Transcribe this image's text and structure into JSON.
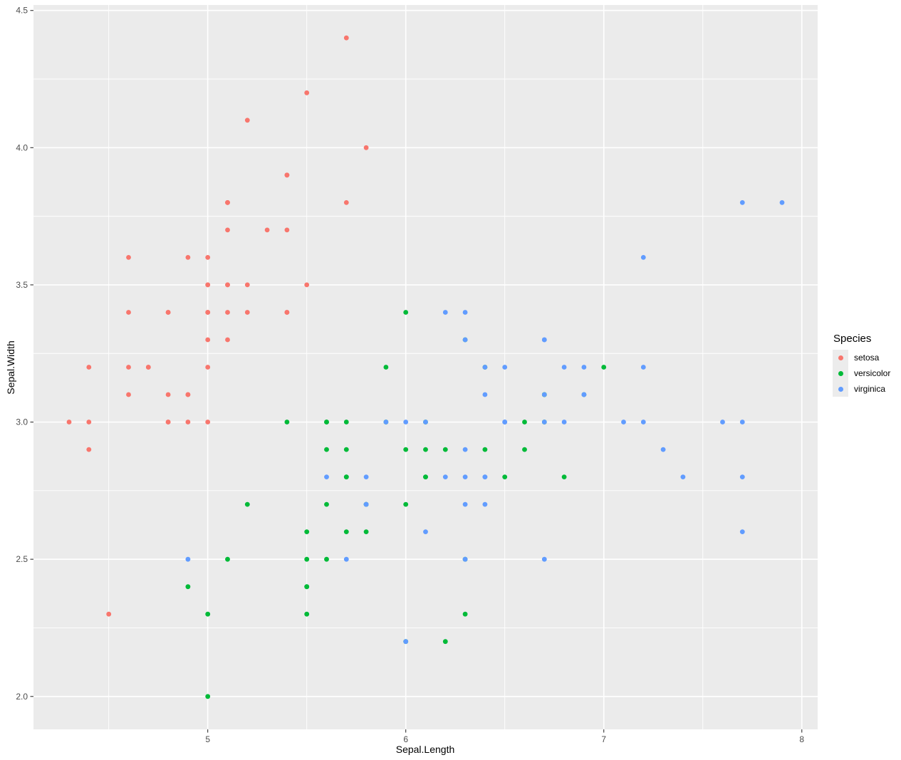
{
  "chart_data": {
    "type": "scatter",
    "title": "",
    "xlabel": "Sepal.Length",
    "ylabel": "Sepal.Width",
    "xlim": [
      4.12,
      8.08
    ],
    "ylim": [
      1.88,
      4.52
    ],
    "x_ticks": {
      "values": [
        5,
        6,
        7,
        8
      ],
      "labels": [
        "5",
        "6",
        "7",
        "8"
      ]
    },
    "y_ticks": {
      "values": [
        2.0,
        2.5,
        3.0,
        3.5,
        4.0,
        4.5
      ],
      "labels": [
        "2.0",
        "2.5",
        "3.0",
        "3.5",
        "4.0",
        "4.5"
      ]
    },
    "x_minor": [
      4.5,
      5.5,
      6.5,
      7.5
    ],
    "y_minor": [
      2.25,
      2.75,
      3.25,
      3.75,
      4.25
    ],
    "grid": "major+minor",
    "legend": {
      "title": "Species",
      "position": "right",
      "entries": [
        {
          "label": "setosa",
          "color": "#F8766D"
        },
        {
          "label": "versicolor",
          "color": "#00BA38"
        },
        {
          "label": "virginica",
          "color": "#619CFF"
        }
      ]
    },
    "theme": {
      "panel_bg": "#EBEBEB",
      "grid_color": "#FFFFFF",
      "tick_color": "#333333",
      "tick_label_color": "#4D4D4D",
      "axis_title_color": "#000000",
      "legend_key_bg": "#ECECEC",
      "point_radius": 3.4
    },
    "series": [
      {
        "name": "setosa",
        "color": "#F8766D",
        "points": [
          [
            5.1,
            3.5
          ],
          [
            4.9,
            3.0
          ],
          [
            4.7,
            3.2
          ],
          [
            4.6,
            3.1
          ],
          [
            5.0,
            3.6
          ],
          [
            5.4,
            3.9
          ],
          [
            4.6,
            3.4
          ],
          [
            5.0,
            3.4
          ],
          [
            4.4,
            2.9
          ],
          [
            4.9,
            3.1
          ],
          [
            5.4,
            3.7
          ],
          [
            4.8,
            3.4
          ],
          [
            4.8,
            3.0
          ],
          [
            4.3,
            3.0
          ],
          [
            5.8,
            4.0
          ],
          [
            5.7,
            4.4
          ],
          [
            5.4,
            3.9
          ],
          [
            5.1,
            3.5
          ],
          [
            5.7,
            3.8
          ],
          [
            5.1,
            3.8
          ],
          [
            5.4,
            3.4
          ],
          [
            5.1,
            3.7
          ],
          [
            4.6,
            3.6
          ],
          [
            5.1,
            3.3
          ],
          [
            4.8,
            3.4
          ],
          [
            5.0,
            3.0
          ],
          [
            5.0,
            3.4
          ],
          [
            5.2,
            3.5
          ],
          [
            5.2,
            3.4
          ],
          [
            4.7,
            3.2
          ],
          [
            4.8,
            3.1
          ],
          [
            5.4,
            3.4
          ],
          [
            5.2,
            4.1
          ],
          [
            5.5,
            4.2
          ],
          [
            4.9,
            3.1
          ],
          [
            5.0,
            3.2
          ],
          [
            5.5,
            3.5
          ],
          [
            4.9,
            3.6
          ],
          [
            4.4,
            3.0
          ],
          [
            5.1,
            3.4
          ],
          [
            5.0,
            3.5
          ],
          [
            4.5,
            2.3
          ],
          [
            4.4,
            3.2
          ],
          [
            5.0,
            3.5
          ],
          [
            5.1,
            3.8
          ],
          [
            4.8,
            3.0
          ],
          [
            5.1,
            3.8
          ],
          [
            4.6,
            3.2
          ],
          [
            5.3,
            3.7
          ],
          [
            5.0,
            3.3
          ]
        ]
      },
      {
        "name": "versicolor",
        "color": "#00BA38",
        "points": [
          [
            7.0,
            3.2
          ],
          [
            6.4,
            3.2
          ],
          [
            6.9,
            3.1
          ],
          [
            5.5,
            2.3
          ],
          [
            6.5,
            2.8
          ],
          [
            5.7,
            2.8
          ],
          [
            6.3,
            3.3
          ],
          [
            4.9,
            2.4
          ],
          [
            6.6,
            2.9
          ],
          [
            5.2,
            2.7
          ],
          [
            5.0,
            2.0
          ],
          [
            5.9,
            3.0
          ],
          [
            6.0,
            2.2
          ],
          [
            6.1,
            2.9
          ],
          [
            5.6,
            2.9
          ],
          [
            6.7,
            3.1
          ],
          [
            5.6,
            3.0
          ],
          [
            5.8,
            2.7
          ],
          [
            6.2,
            2.2
          ],
          [
            5.6,
            2.5
          ],
          [
            5.9,
            3.2
          ],
          [
            6.1,
            2.8
          ],
          [
            6.3,
            2.5
          ],
          [
            6.1,
            2.8
          ],
          [
            6.4,
            2.9
          ],
          [
            6.6,
            3.0
          ],
          [
            6.8,
            2.8
          ],
          [
            6.7,
            3.0
          ],
          [
            6.0,
            2.9
          ],
          [
            5.7,
            2.6
          ],
          [
            5.5,
            2.4
          ],
          [
            5.5,
            2.4
          ],
          [
            5.8,
            2.7
          ],
          [
            6.0,
            2.7
          ],
          [
            5.4,
            3.0
          ],
          [
            6.0,
            3.4
          ],
          [
            6.7,
            3.1
          ],
          [
            6.3,
            2.3
          ],
          [
            5.6,
            3.0
          ],
          [
            5.5,
            2.5
          ],
          [
            5.5,
            2.6
          ],
          [
            6.1,
            3.0
          ],
          [
            5.8,
            2.6
          ],
          [
            5.0,
            2.3
          ],
          [
            5.6,
            2.7
          ],
          [
            5.7,
            3.0
          ],
          [
            5.7,
            2.9
          ],
          [
            6.2,
            2.9
          ],
          [
            5.1,
            2.5
          ],
          [
            5.7,
            2.8
          ]
        ]
      },
      {
        "name": "virginica",
        "color": "#619CFF",
        "points": [
          [
            6.3,
            3.3
          ],
          [
            5.8,
            2.7
          ],
          [
            7.1,
            3.0
          ],
          [
            6.3,
            2.9
          ],
          [
            6.5,
            3.0
          ],
          [
            7.6,
            3.0
          ],
          [
            4.9,
            2.5
          ],
          [
            7.3,
            2.9
          ],
          [
            6.7,
            2.5
          ],
          [
            7.2,
            3.6
          ],
          [
            6.5,
            3.2
          ],
          [
            6.4,
            2.7
          ],
          [
            6.8,
            3.0
          ],
          [
            5.7,
            2.5
          ],
          [
            5.8,
            2.8
          ],
          [
            6.4,
            3.2
          ],
          [
            6.5,
            3.0
          ],
          [
            7.7,
            3.8
          ],
          [
            7.7,
            2.6
          ],
          [
            6.0,
            2.2
          ],
          [
            6.9,
            3.2
          ],
          [
            5.6,
            2.8
          ],
          [
            7.7,
            2.8
          ],
          [
            6.3,
            2.7
          ],
          [
            6.7,
            3.3
          ],
          [
            7.2,
            3.2
          ],
          [
            6.2,
            2.8
          ],
          [
            6.1,
            3.0
          ],
          [
            6.4,
            2.8
          ],
          [
            7.2,
            3.0
          ],
          [
            7.4,
            2.8
          ],
          [
            7.9,
            3.8
          ],
          [
            6.4,
            2.8
          ],
          [
            6.3,
            2.8
          ],
          [
            6.1,
            2.6
          ],
          [
            7.7,
            3.0
          ],
          [
            6.3,
            3.4
          ],
          [
            6.4,
            3.1
          ],
          [
            6.0,
            3.0
          ],
          [
            6.9,
            3.1
          ],
          [
            6.7,
            3.1
          ],
          [
            6.9,
            3.1
          ],
          [
            5.8,
            2.7
          ],
          [
            6.8,
            3.2
          ],
          [
            6.7,
            3.3
          ],
          [
            6.7,
            3.0
          ],
          [
            6.3,
            2.5
          ],
          [
            6.5,
            3.0
          ],
          [
            6.2,
            3.4
          ],
          [
            5.9,
            3.0
          ]
        ]
      }
    ]
  }
}
